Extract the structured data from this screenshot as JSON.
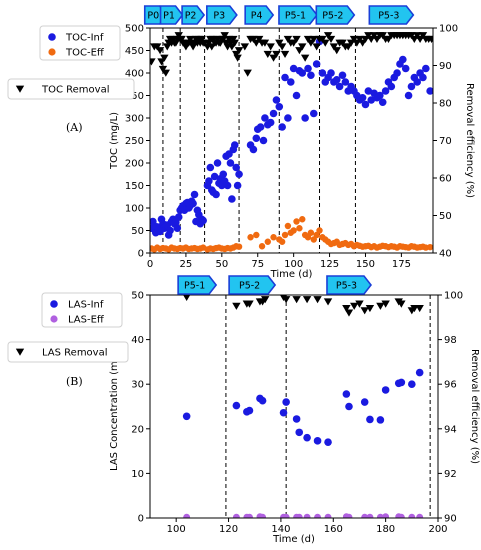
{
  "colors": {
    "inf": "#1a1ae0",
    "eff": "#f06a10",
    "las_eff": "#b060e0",
    "removal": "#000000",
    "phase_fill": "#22c4f0",
    "phase_stroke": "#1a3fd8"
  },
  "charts": [
    {
      "panel_label": "(A)",
      "xlabel": "Time (d)",
      "ylabel_left": "TOC (mg/L)",
      "ylabel_right": "Removal efficiency (%)",
      "legend": {
        "inf": "TOC-Inf",
        "eff": "TOC-Eff",
        "removal": "TOC Removal"
      },
      "phases": [
        {
          "label": "P0",
          "x": 4
        },
        {
          "label": "P1",
          "x": 15
        },
        {
          "label": "P2",
          "x": 30
        },
        {
          "label": "P3",
          "x": 50
        },
        {
          "label": "P4",
          "x": 76
        },
        {
          "label": "P5-1",
          "x": 103
        },
        {
          "label": "P5-2",
          "x": 129
        },
        {
          "label": "P5-3",
          "x": 168
        }
      ]
    },
    {
      "panel_label": "(B)",
      "xlabel": "Time (d)",
      "ylabel_left": "LAS Concentration (mg/L)",
      "ylabel_right": "Removal efficiency (%)",
      "legend": {
        "inf": "LAS-Inf",
        "eff": "LAS-Eff",
        "removal": "LAS Removal"
      },
      "phases": [
        {
          "label": "P5-1",
          "x": 108
        },
        {
          "label": "P5-2",
          "x": 129
        },
        {
          "label": "P5-3",
          "x": 166
        }
      ]
    }
  ],
  "chart_data": [
    {
      "type": "scatter",
      "xlim": [
        0,
        197
      ],
      "ylim_left": [
        0,
        500
      ],
      "ylim_right": [
        40,
        100
      ],
      "xticks": [
        0,
        25,
        50,
        75,
        100,
        125,
        150,
        175
      ],
      "yticks_left": [
        0,
        50,
        100,
        150,
        200,
        250,
        300,
        350,
        400,
        450,
        500
      ],
      "yticks_right": [
        40,
        50,
        60,
        70,
        80,
        90,
        100
      ],
      "phase_boundaries": [
        9,
        21,
        38,
        62,
        90,
        118,
        143
      ],
      "series": [
        {
          "name": "TOC-Inf",
          "axis": "left",
          "x": [
            1,
            2,
            3,
            4,
            5,
            6,
            7,
            8,
            9,
            10,
            11,
            12,
            13,
            14,
            15,
            16,
            17,
            18,
            19,
            20,
            21,
            22,
            23,
            24,
            25,
            26,
            27,
            28,
            29,
            30,
            31,
            32,
            33,
            34,
            35,
            36,
            37,
            40,
            41,
            42,
            43,
            44,
            45,
            46,
            47,
            48,
            49,
            50,
            51,
            52,
            53,
            54,
            55,
            56,
            57,
            58,
            59,
            60,
            61,
            62,
            70,
            72,
            74,
            75,
            77,
            79,
            80,
            82,
            84,
            86,
            88,
            90,
            92,
            94,
            96,
            98,
            100,
            102,
            104,
            106,
            108,
            110,
            112,
            114,
            116,
            118,
            120,
            122,
            124,
            126,
            128,
            130,
            132,
            134,
            136,
            138,
            140,
            142,
            144,
            146,
            148,
            150,
            152,
            154,
            156,
            158,
            160,
            162,
            164,
            166,
            168,
            170,
            172,
            174,
            176,
            178,
            180,
            182,
            184,
            186,
            188,
            190,
            192,
            195
          ],
          "y": [
            55,
            70,
            60,
            45,
            58,
            52,
            48,
            75,
            65,
            55,
            60,
            62,
            40,
            50,
            70,
            75,
            65,
            68,
            55,
            80,
            95,
            100,
            105,
            95,
            110,
            112,
            100,
            105,
            115,
            110,
            130,
            70,
            95,
            85,
            65,
            75,
            72,
            150,
            160,
            190,
            140,
            135,
            170,
            130,
            200,
            155,
            165,
            150,
            175,
            160,
            215,
            150,
            220,
            200,
            120,
            230,
            240,
            190,
            150,
            175,
            240,
            230,
            255,
            275,
            280,
            250,
            300,
            285,
            290,
            310,
            340,
            325,
            280,
            390,
            300,
            380,
            410,
            350,
            405,
            400,
            300,
            410,
            395,
            310,
            420,
            470,
            400,
            380,
            390,
            400,
            380,
            385,
            370,
            395,
            380,
            360,
            370,
            360,
            350,
            340,
            345,
            330,
            360,
            340,
            355,
            345,
            350,
            335,
            360,
            380,
            370,
            390,
            400,
            420,
            430,
            410,
            350,
            370,
            390,
            380,
            400,
            390,
            410,
            360
          ]
        },
        {
          "name": "TOC-Eff",
          "axis": "left",
          "x": [
            1,
            3,
            5,
            7,
            9,
            11,
            13,
            15,
            17,
            19,
            21,
            23,
            25,
            27,
            29,
            31,
            33,
            35,
            37,
            40,
            42,
            44,
            46,
            48,
            50,
            52,
            54,
            56,
            58,
            60,
            62,
            70,
            74,
            78,
            82,
            86,
            90,
            92,
            94,
            96,
            98,
            100,
            102,
            104,
            106,
            108,
            110,
            112,
            114,
            116,
            118,
            120,
            122,
            124,
            126,
            128,
            130,
            132,
            134,
            136,
            138,
            140,
            142,
            144,
            146,
            148,
            150,
            152,
            154,
            156,
            158,
            160,
            162,
            164,
            166,
            168,
            170,
            172,
            174,
            176,
            178,
            180,
            182,
            184,
            186,
            188,
            190,
            192,
            195
          ],
          "y": [
            10,
            8,
            12,
            9,
            11,
            10,
            8,
            12,
            10,
            9,
            11,
            10,
            12,
            9,
            10,
            11,
            9,
            10,
            12,
            8,
            10,
            9,
            11,
            12,
            10,
            9,
            11,
            10,
            12,
            15,
            14,
            35,
            40,
            15,
            25,
            35,
            30,
            25,
            40,
            60,
            45,
            50,
            70,
            55,
            75,
            40,
            35,
            45,
            30,
            40,
            50,
            35,
            30,
            25,
            20,
            22,
            25,
            18,
            20,
            22,
            18,
            20,
            15,
            18,
            16,
            14,
            15,
            16,
            13,
            15,
            12,
            14,
            16,
            15,
            13,
            15,
            14,
            12,
            15,
            14,
            13,
            12,
            15,
            14,
            12,
            13,
            14,
            12,
            13
          ]
        },
        {
          "name": "TOC Removal",
          "axis": "right",
          "x": [
            1,
            3,
            5,
            7,
            8,
            9,
            10,
            11,
            12,
            13,
            14,
            15,
            16,
            17,
            18,
            19,
            20,
            21,
            22,
            23,
            24,
            25,
            26,
            27,
            28,
            29,
            30,
            31,
            32,
            33,
            34,
            35,
            36,
            37,
            38,
            40,
            41,
            42,
            43,
            44,
            45,
            46,
            47,
            48,
            49,
            50,
            51,
            52,
            53,
            54,
            55,
            56,
            57,
            58,
            59,
            60,
            61,
            62,
            66,
            68,
            70,
            72,
            74,
            76,
            78,
            80,
            82,
            84,
            86,
            88,
            90,
            92,
            94,
            96,
            98,
            100,
            102,
            104,
            106,
            108,
            110,
            112,
            114,
            116,
            118,
            120,
            122,
            124,
            126,
            128,
            130,
            132,
            134,
            136,
            138,
            140,
            142,
            144,
            146,
            148,
            150,
            152,
            154,
            156,
            158,
            160,
            162,
            164,
            166,
            168,
            170,
            172,
            174,
            176,
            178,
            180,
            182,
            184,
            186,
            188,
            190,
            192,
            194,
            196
          ],
          "y": [
            91,
            95,
            95,
            94,
            91,
            89,
            92,
            88,
            95,
            96,
            97,
            96,
            97,
            96,
            96,
            97,
            98,
            97,
            97,
            96,
            96,
            95,
            96,
            96,
            97,
            96,
            95,
            96,
            97,
            96,
            97,
            96,
            97,
            96,
            96,
            95,
            96,
            97,
            95,
            97,
            96,
            96,
            97,
            96,
            96,
            97,
            97,
            98,
            96,
            95,
            97,
            96,
            95,
            97,
            96,
            93,
            92,
            94,
            95,
            88,
            97,
            97,
            96,
            97,
            96,
            96,
            93,
            95,
            92,
            93,
            96,
            95,
            93,
            97,
            96,
            96,
            97,
            94,
            95,
            92,
            97,
            96,
            97,
            95,
            97,
            97,
            96,
            98,
            97,
            95,
            94,
            96,
            96,
            95,
            95,
            96,
            97,
            96,
            97,
            96,
            97,
            98,
            97,
            98,
            97,
            98,
            98,
            97,
            97,
            98,
            98,
            98,
            98,
            98,
            98,
            98,
            98,
            97,
            98,
            97,
            98,
            97,
            97,
            97
          ]
        }
      ]
    },
    {
      "type": "scatter",
      "xlim": [
        90,
        200
      ],
      "ylim_left": [
        0,
        50
      ],
      "ylim_right": [
        90,
        100
      ],
      "xticks": [
        100,
        120,
        140,
        160,
        180,
        200
      ],
      "yticks_left": [
        0,
        10,
        20,
        30,
        40,
        50
      ],
      "yticks_right": [
        90,
        92,
        94,
        96,
        98,
        100
      ],
      "phase_boundaries": [
        119,
        142,
        197
      ],
      "series": [
        {
          "name": "LAS-Inf",
          "axis": "left",
          "x": [
            104,
            123,
            127,
            128,
            132,
            133,
            141,
            142,
            146,
            147,
            150,
            154,
            158,
            165,
            166,
            172,
            174,
            178,
            180,
            185,
            186,
            190,
            193
          ],
          "y": [
            22.8,
            25.2,
            23.8,
            24.1,
            26.8,
            26.3,
            23.6,
            26.0,
            22.2,
            19.2,
            18.0,
            17.3,
            17.0,
            27.8,
            25.0,
            26.0,
            22.1,
            22.0,
            28.7,
            30.2,
            30.4,
            30.0,
            32.6
          ]
        },
        {
          "name": "LAS-Eff",
          "axis": "left",
          "x": [
            104,
            123,
            127,
            128,
            132,
            133,
            141,
            142,
            146,
            147,
            150,
            154,
            158,
            165,
            166,
            172,
            174,
            178,
            180,
            185,
            186,
            190,
            193
          ],
          "y": [
            0.2,
            0.2,
            0.2,
            0.2,
            0.3,
            0.2,
            0.2,
            0.2,
            0.2,
            0.2,
            0.2,
            0.2,
            0.2,
            0.3,
            0.2,
            0.2,
            0.2,
            0.2,
            0.3,
            0.3,
            0.2,
            0.2,
            0.2
          ]
        },
        {
          "name": "LAS Removal",
          "axis": "right",
          "x": [
            104,
            123,
            127,
            128,
            132,
            133,
            134,
            141,
            142,
            146,
            150,
            154,
            158,
            165,
            166,
            168,
            170,
            172,
            174,
            178,
            180,
            185,
            186,
            190,
            191,
            193
          ],
          "y": [
            99.9,
            99.5,
            99.6,
            99.6,
            99.7,
            99.7,
            99.8,
            99.9,
            99.8,
            99.8,
            99.8,
            99.8,
            99.7,
            99.4,
            99.2,
            99.5,
            99.6,
            99.3,
            99.4,
            99.5,
            99.6,
            99.7,
            99.6,
            99.3,
            99.4,
            99.4
          ]
        }
      ]
    }
  ]
}
